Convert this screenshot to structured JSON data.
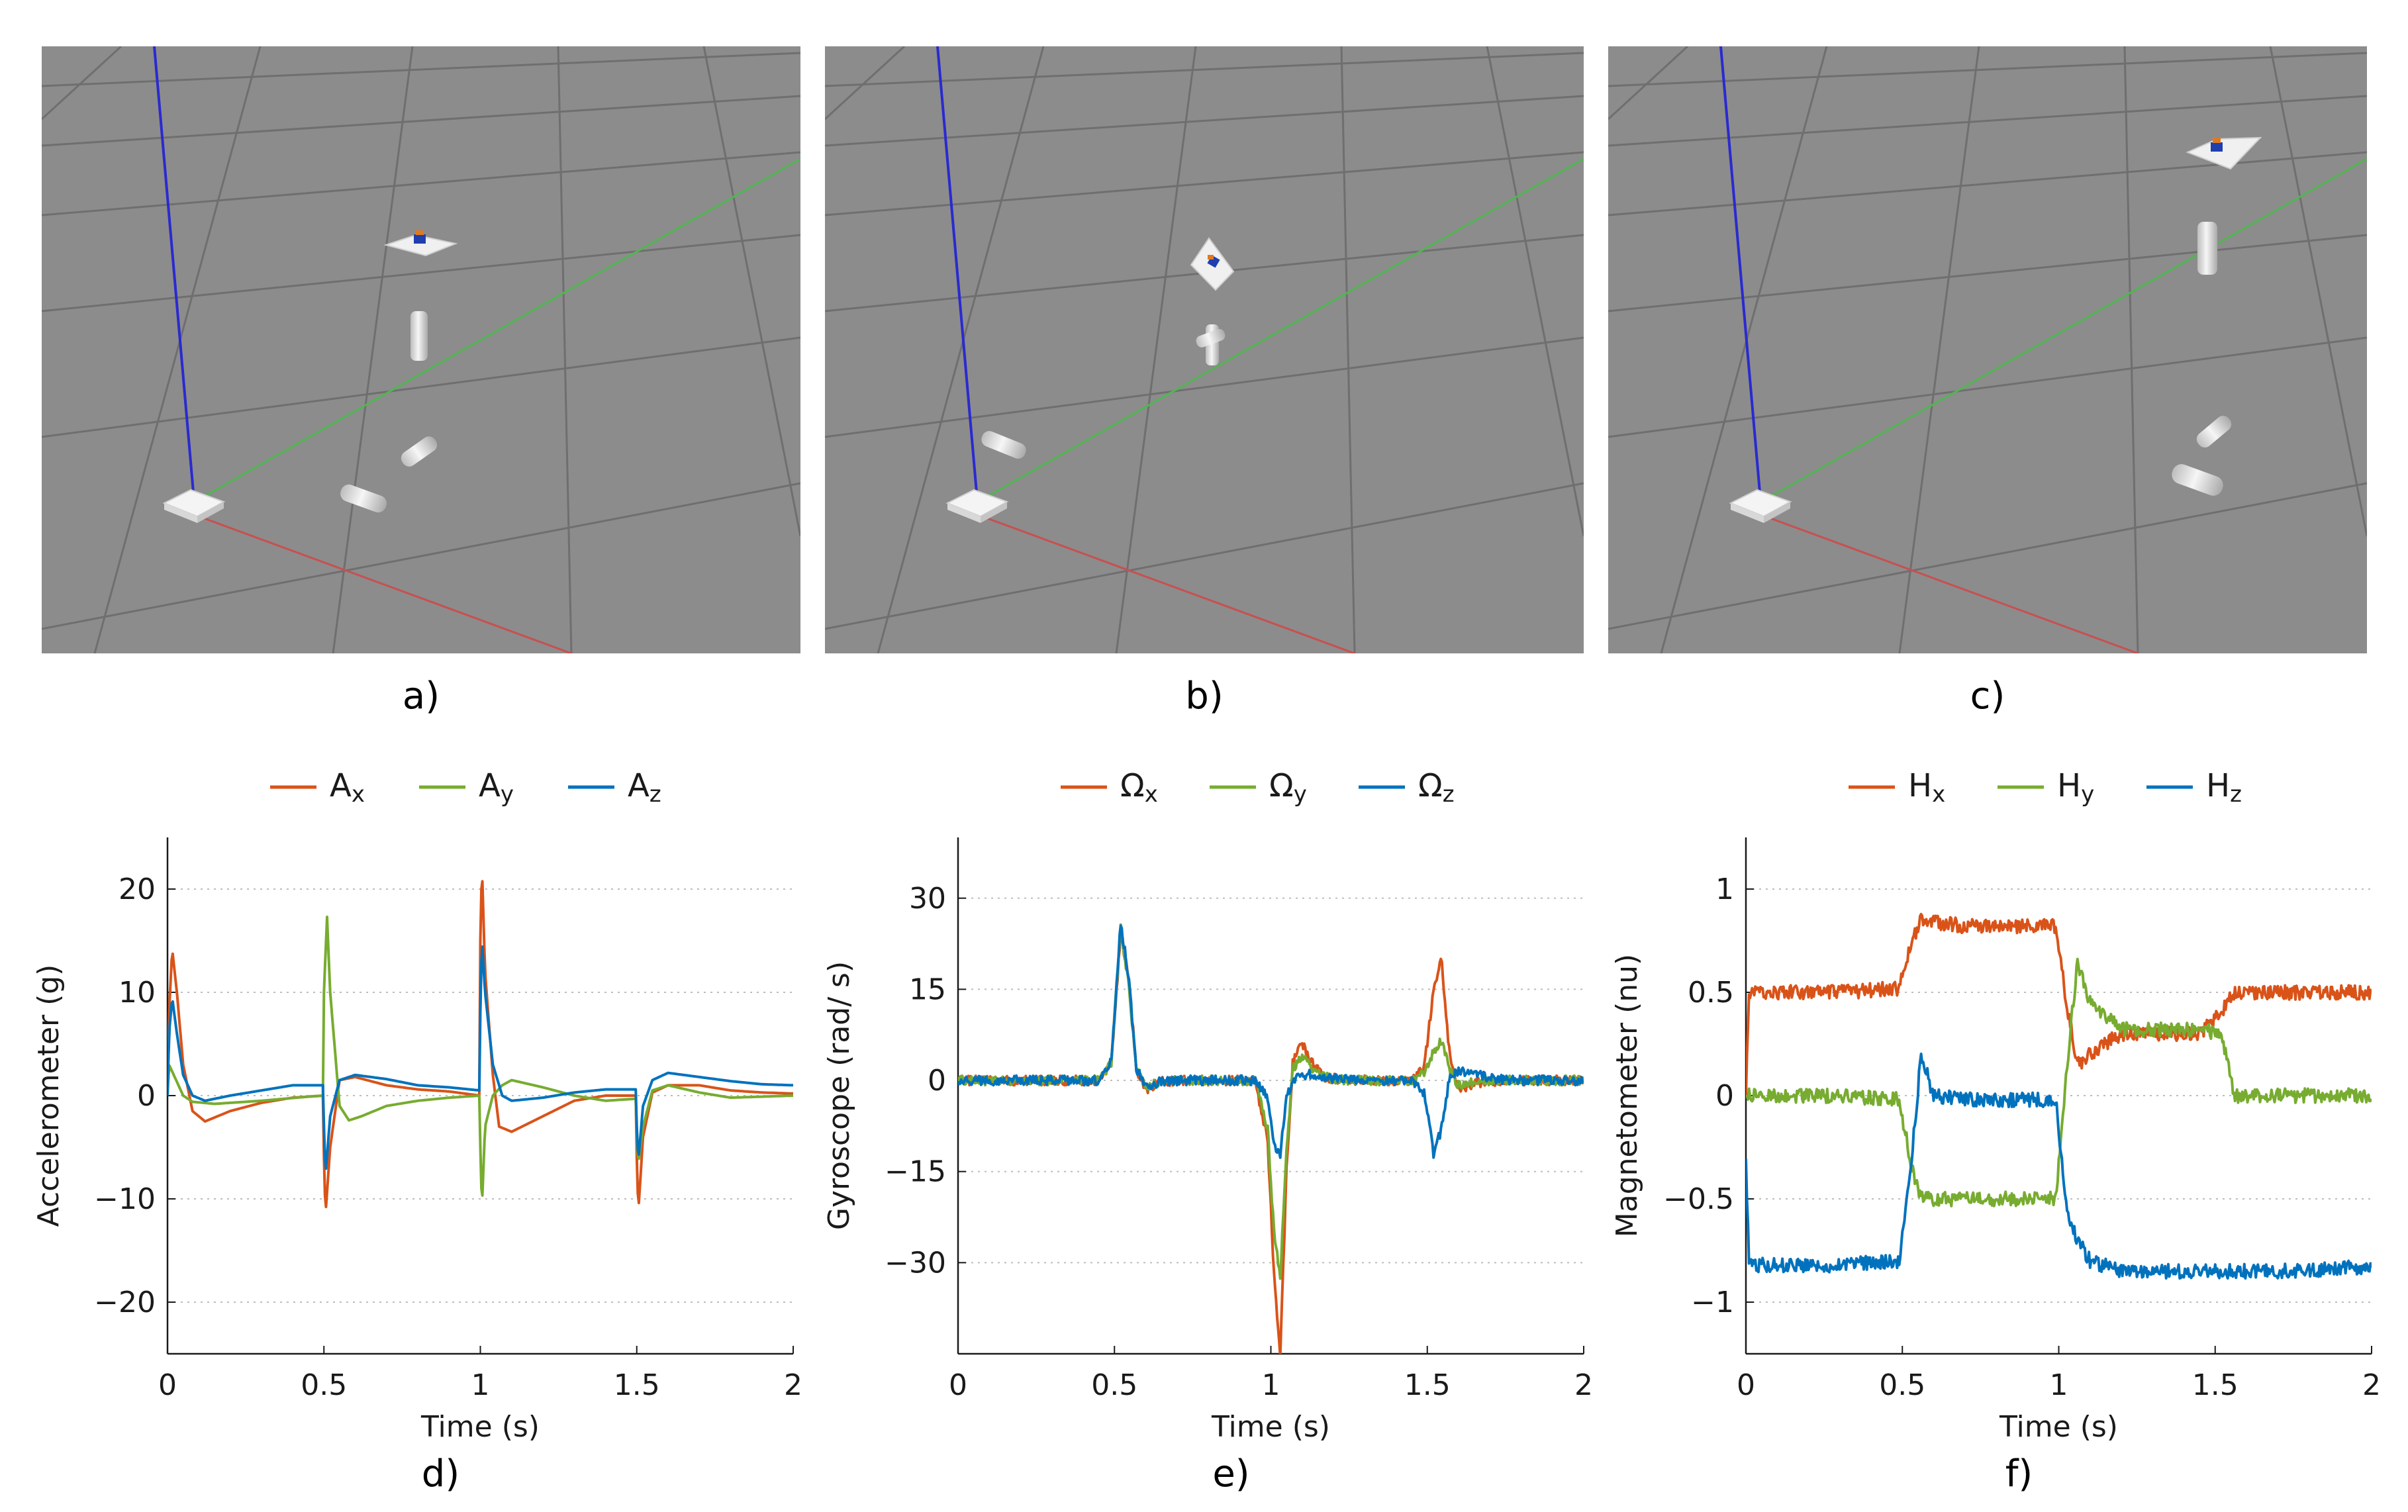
{
  "colors": {
    "x": "#d95319",
    "y": "#77ac30",
    "z": "#0072bd",
    "scene_bg": "#8c8c8c",
    "grid": "#6f6f6f",
    "axis_x": "#c85050",
    "axis_y": "#52b552",
    "axis_z": "#2a2ad0"
  },
  "scenes": [
    {
      "label": "a)"
    },
    {
      "label": "b)"
    },
    {
      "label": "c)"
    }
  ],
  "chart_data": [
    {
      "type": "line",
      "panel_label": "d)",
      "xlabel": "Time (s)",
      "ylabel": "Accelerometer (g)",
      "xlim": [
        0,
        2
      ],
      "ylim": [
        -25,
        25
      ],
      "xticks": [
        0,
        0.5,
        1,
        1.5,
        2
      ],
      "xtick_labels": [
        "0",
        "0.5",
        "1",
        "1.5",
        "2"
      ],
      "yticks": [
        -20,
        -10,
        0,
        10,
        20
      ],
      "ytick_labels": [
        "−20",
        "−10",
        "0",
        "10",
        "20"
      ],
      "grid": "horizontal-dotted",
      "legend_position": "top-center",
      "series": [
        {
          "name": "A",
          "sub": "x",
          "color_key": "x",
          "x": [
            0,
            0.005,
            0.015,
            0.03,
            0.05,
            0.08,
            0.12,
            0.2,
            0.3,
            0.4,
            0.499,
            0.5,
            0.505,
            0.52,
            0.55,
            0.6,
            0.7,
            0.8,
            0.9,
            0.999,
            1.0,
            1.005,
            1.015,
            1.04,
            1.06,
            1.1,
            1.2,
            1.3,
            1.4,
            1.499,
            1.5,
            1.505,
            1.52,
            1.55,
            1.6,
            1.7,
            1.8,
            1.9,
            2.0
          ],
          "values": [
            0,
            8,
            14.2,
            10,
            3,
            -1.5,
            -2.5,
            -1.5,
            -0.7,
            -0.2,
            0,
            -6,
            -11.5,
            -5,
            1.5,
            1.8,
            1,
            0.6,
            0.4,
            0,
            15,
            22.5,
            12,
            2,
            -3,
            -3.5,
            -2,
            -0.5,
            0,
            0,
            -6,
            -11.2,
            -4,
            0.3,
            1,
            1,
            0.5,
            0.3,
            0.2
          ]
        },
        {
          "name": "A",
          "sub": "y",
          "color_key": "y",
          "x": [
            0,
            0.005,
            0.02,
            0.05,
            0.08,
            0.15,
            0.3,
            0.45,
            0.499,
            0.5,
            0.51,
            0.52,
            0.55,
            0.58,
            0.62,
            0.7,
            0.8,
            0.9,
            0.999,
            1.0,
            1.005,
            1.015,
            1.04,
            1.07,
            1.1,
            1.2,
            1.3,
            1.4,
            1.499,
            1.5,
            1.505,
            1.52,
            1.55,
            1.6,
            1.7,
            1.8,
            1.9,
            2.0
          ],
          "values": [
            0,
            3,
            2,
            0,
            -0.6,
            -0.8,
            -0.5,
            -0.1,
            0,
            10,
            17.3,
            10,
            -1,
            -2.4,
            -2,
            -1,
            -0.5,
            -0.2,
            0,
            -5,
            -11,
            -3,
            0,
            1,
            1.5,
            0.8,
            0,
            -0.5,
            -0.3,
            -4,
            -6.5,
            -3,
            0.5,
            1,
            0.3,
            -0.2,
            -0.1,
            0
          ]
        },
        {
          "name": "A",
          "sub": "z",
          "color_key": "z",
          "x": [
            0,
            0.005,
            0.015,
            0.03,
            0.05,
            0.08,
            0.12,
            0.2,
            0.3,
            0.4,
            0.499,
            0.5,
            0.505,
            0.52,
            0.55,
            0.6,
            0.7,
            0.8,
            0.9,
            0.999,
            1.0,
            1.005,
            1.015,
            1.04,
            1.07,
            1.1,
            1.2,
            1.3,
            1.4,
            1.499,
            1.5,
            1.505,
            1.52,
            1.55,
            1.6,
            1.7,
            1.8,
            1.9,
            2.0
          ],
          "values": [
            0,
            6,
            9.5,
            6,
            2,
            0,
            -0.5,
            0,
            0.5,
            1,
            1,
            -3,
            -7.7,
            -2,
            1.5,
            2,
            1.6,
            1,
            0.8,
            0.5,
            8,
            15.3,
            10,
            3,
            0,
            -0.5,
            -0.2,
            0.3,
            0.6,
            0.6,
            -3,
            -6.3,
            -1,
            1.5,
            2.2,
            1.8,
            1.4,
            1.1,
            1.0
          ]
        }
      ]
    },
    {
      "type": "line",
      "panel_label": "e)",
      "xlabel": "Time (s)",
      "ylabel": "Gyroscope (rad/ s)",
      "xlim": [
        0,
        2
      ],
      "ylim": [
        -45,
        40
      ],
      "xticks": [
        0,
        0.5,
        1,
        1.5,
        2
      ],
      "xtick_labels": [
        "0",
        "0.5",
        "1",
        "1.5",
        "2"
      ],
      "yticks": [
        -30,
        -15,
        0,
        15,
        30
      ],
      "ytick_labels": [
        "−30",
        "−15",
        "0",
        "15",
        "30"
      ],
      "grid": "horizontal-dotted",
      "legend_position": "top-center",
      "series": [
        {
          "name": "Ω",
          "sub": "x",
          "color_key": "x",
          "x": [
            0,
            0.45,
            0.49,
            0.52,
            0.545,
            0.57,
            0.6,
            0.64,
            0.7,
            0.95,
            0.99,
            1.01,
            1.03,
            1.05,
            1.07,
            1.1,
            1.13,
            1.17,
            1.25,
            1.45,
            1.49,
            1.52,
            1.545,
            1.57,
            1.6,
            1.65,
            1.75,
            2.0
          ],
          "values": [
            0,
            0,
            3,
            24,
            17,
            2,
            -1.5,
            -0.3,
            0,
            0,
            -10,
            -32,
            -45,
            -15,
            3,
            6,
            3,
            0.5,
            0,
            0,
            2,
            15,
            20,
            5,
            -1.5,
            -0.5,
            0,
            0
          ]
        },
        {
          "name": "Ω",
          "sub": "y",
          "color_key": "y",
          "x": [
            0,
            0.45,
            0.49,
            0.52,
            0.545,
            0.57,
            0.6,
            0.64,
            0.7,
            0.95,
            0.99,
            1.01,
            1.03,
            1.05,
            1.07,
            1.1,
            1.13,
            1.17,
            1.25,
            1.45,
            1.49,
            1.52,
            1.545,
            1.57,
            1.6,
            1.65,
            1.75,
            2.0
          ],
          "values": [
            0,
            0,
            3,
            25,
            16,
            2,
            -1,
            -0.3,
            0,
            0,
            -8,
            -25,
            -32,
            -12,
            2,
            4,
            2,
            0.5,
            0,
            0,
            1,
            5,
            6.5,
            2,
            -0.8,
            -0.3,
            0,
            0
          ]
        },
        {
          "name": "Ω",
          "sub": "z",
          "color_key": "z",
          "x": [
            0,
            0.45,
            0.49,
            0.52,
            0.545,
            0.57,
            0.6,
            0.64,
            0.7,
            0.95,
            0.99,
            1.01,
            1.03,
            1.05,
            1.07,
            1.1,
            1.13,
            1.17,
            1.25,
            1.45,
            1.49,
            1.52,
            1.545,
            1.57,
            1.6,
            1.65,
            1.75,
            2.0
          ],
          "values": [
            0,
            0,
            3,
            26,
            17,
            2,
            -1.2,
            -0.3,
            0,
            0,
            -3,
            -11,
            -12,
            -3,
            0,
            0.8,
            1,
            0.5,
            0,
            0,
            -2,
            -12,
            -8,
            0,
            1.5,
            1,
            0,
            0
          ]
        }
      ]
    },
    {
      "type": "line",
      "panel_label": "f)",
      "xlabel": "Time (s)",
      "ylabel": "Magnetometer (nu)",
      "xlim": [
        0,
        2
      ],
      "ylim": [
        -1.25,
        1.25
      ],
      "xticks": [
        0,
        0.5,
        1,
        1.5,
        2
      ],
      "xtick_labels": [
        "0",
        "0.5",
        "1",
        "1.5",
        "2"
      ],
      "yticks": [
        -1,
        -0.5,
        0,
        0.5,
        1
      ],
      "ytick_labels": [
        "−1",
        "−0.5",
        "0",
        "0.5",
        "1"
      ],
      "grid": "horizontal-dotted",
      "legend_position": "top-center",
      "series": [
        {
          "name": "H",
          "sub": "x",
          "color_key": "x",
          "x": [
            0,
            0.01,
            0.05,
            0.3,
            0.49,
            0.53,
            0.56,
            0.7,
            0.99,
            1.03,
            1.06,
            1.1,
            1.2,
            1.45,
            1.52,
            1.56,
            1.7,
            2.0
          ],
          "values": [
            0,
            0.5,
            0.5,
            0.5,
            0.52,
            0.75,
            0.85,
            0.82,
            0.82,
            0.4,
            0.15,
            0.2,
            0.3,
            0.3,
            0.4,
            0.5,
            0.5,
            0.5
          ]
        },
        {
          "name": "H",
          "sub": "y",
          "color_key": "y",
          "x": [
            0,
            0.01,
            0.05,
            0.3,
            0.49,
            0.53,
            0.56,
            0.7,
            0.99,
            1.03,
            1.06,
            1.1,
            1.2,
            1.45,
            1.52,
            1.56,
            1.7,
            2.0
          ],
          "values": [
            0,
            0,
            0,
            0,
            -0.02,
            -0.35,
            -0.5,
            -0.5,
            -0.5,
            0.2,
            0.65,
            0.45,
            0.32,
            0.32,
            0.3,
            0,
            0,
            0
          ]
        },
        {
          "name": "H",
          "sub": "z",
          "color_key": "z",
          "x": [
            0,
            0.01,
            0.05,
            0.3,
            0.49,
            0.53,
            0.56,
            0.6,
            0.7,
            0.99,
            1.03,
            1.06,
            1.1,
            1.2,
            1.45,
            1.52,
            1.56,
            1.7,
            2.0
          ],
          "values": [
            -0.3,
            -0.82,
            -0.82,
            -0.82,
            -0.8,
            -0.3,
            0.2,
            0.0,
            -0.02,
            -0.02,
            -0.6,
            -0.7,
            -0.8,
            -0.85,
            -0.85,
            -0.85,
            -0.85,
            -0.85,
            -0.83
          ]
        }
      ]
    }
  ]
}
